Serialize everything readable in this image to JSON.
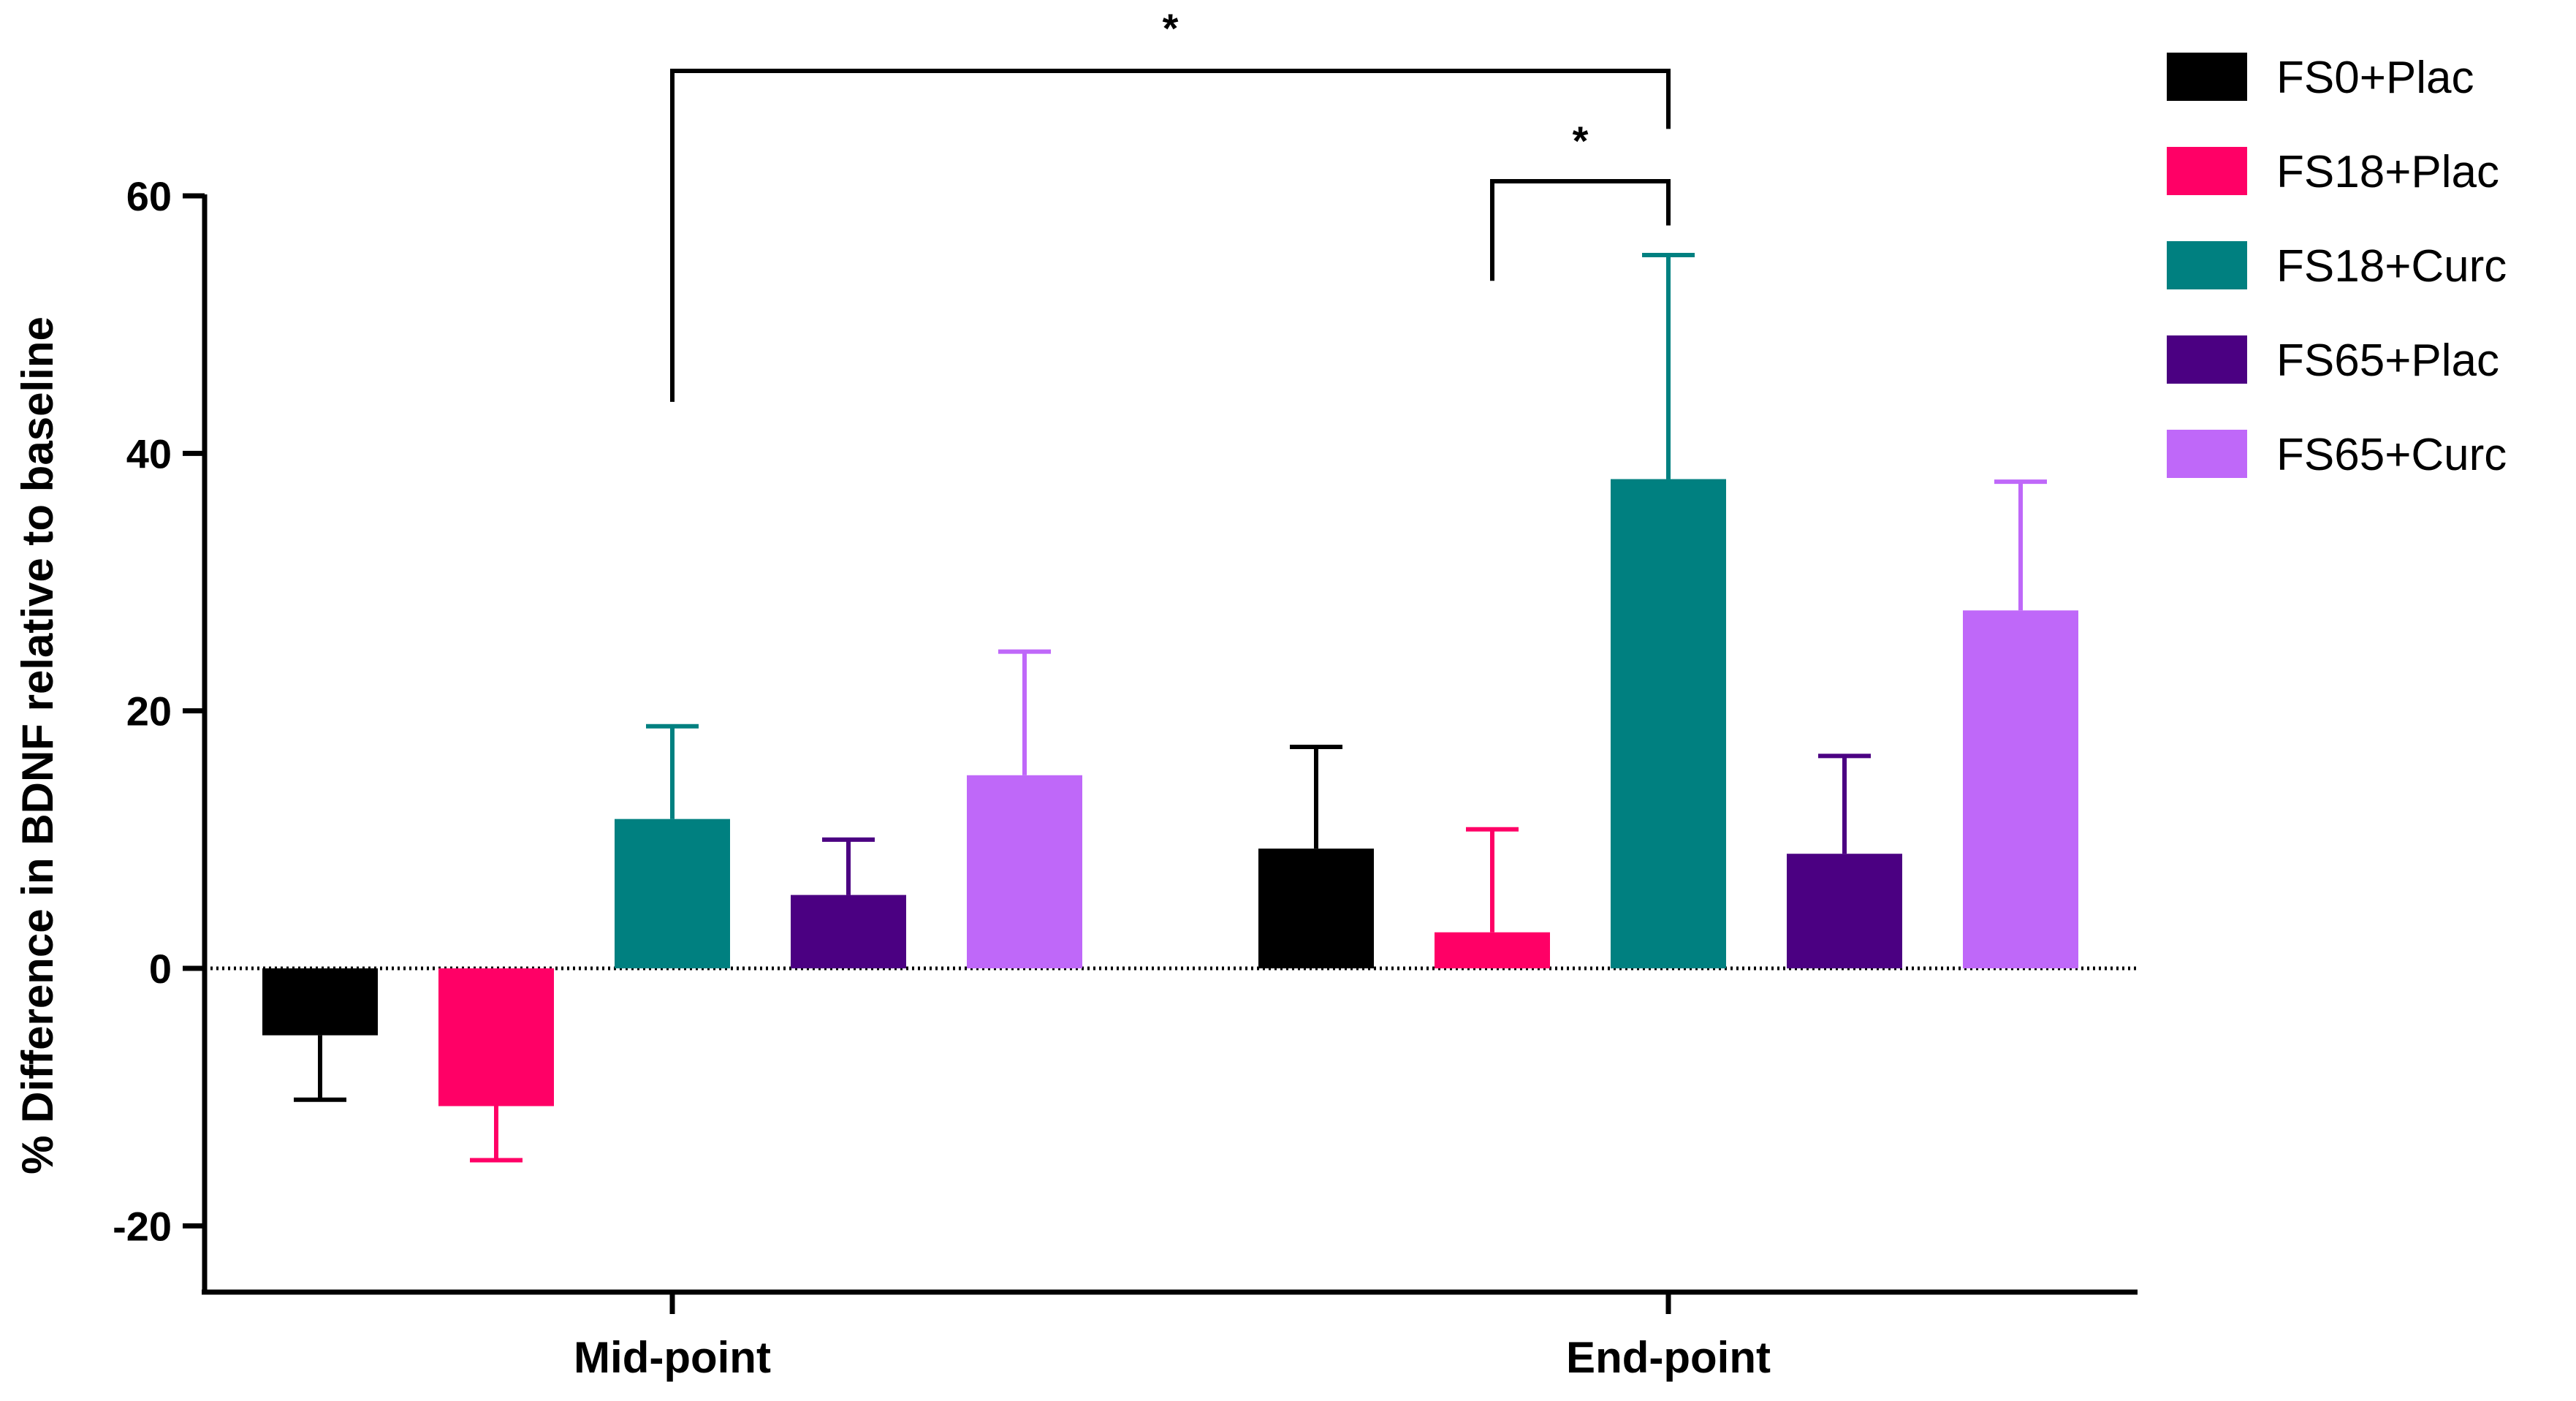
{
  "chart_data": {
    "type": "bar",
    "title": "",
    "xlabel": "",
    "ylabel": "%  Difference in BDNF relative to baseline",
    "ylim": [
      -25,
      60
    ],
    "yticks": [
      -20,
      0,
      20,
      40,
      60
    ],
    "categories": [
      "Mid-point",
      "End-point"
    ],
    "series": [
      {
        "name": "FS0+Plac",
        "color": "#000000",
        "values": [
          -5.2,
          9.3
        ],
        "errors": [
          5.0,
          7.9
        ]
      },
      {
        "name": "FS18+Plac",
        "color": "#ff0066",
        "values": [
          -10.7,
          2.8
        ],
        "errors": [
          4.2,
          8.0
        ]
      },
      {
        "name": "FS18+Curc",
        "color": "#008080",
        "values": [
          11.6,
          38.0
        ],
        "errors": [
          7.2,
          17.4
        ]
      },
      {
        "name": "FS65+Plac",
        "color": "#4b0082",
        "values": [
          5.7,
          8.9
        ],
        "errors": [
          4.3,
          7.6
        ]
      },
      {
        "name": "FS65+Curc",
        "color": "#bf68f9",
        "values": [
          15.0,
          27.8
        ],
        "errors": [
          9.6,
          10.0
        ]
      }
    ],
    "significance": [
      {
        "label": "*",
        "from": {
          "category": "Mid-point",
          "series": "FS18+Curc"
        },
        "to": {
          "category": "End-point",
          "series": "FS18+Curc"
        }
      },
      {
        "label": "*",
        "from": {
          "category": "End-point",
          "series": "FS18+Plac"
        },
        "to": {
          "category": "End-point",
          "series": "FS18+Curc"
        }
      }
    ],
    "legend_position": "top-right",
    "grid": false,
    "zero_line": "dotted"
  }
}
